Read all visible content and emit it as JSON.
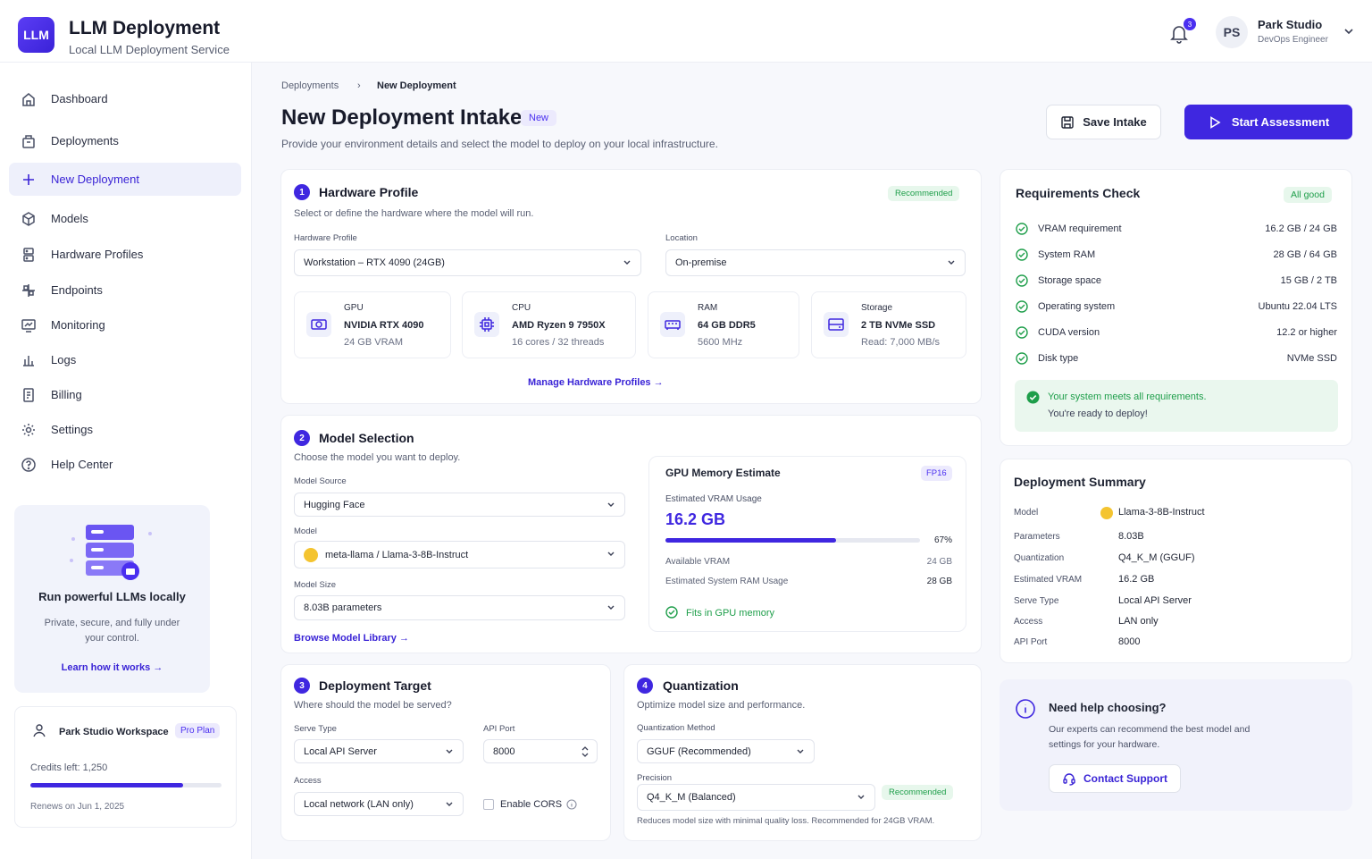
{
  "header": {
    "logo_text": "LLM",
    "title": "LLM Deployment",
    "subtitle": "Local LLM Deployment Service",
    "notification_count": "3",
    "user": {
      "initials": "PS",
      "name": "Park Studio",
      "role": "DevOps Engineer"
    }
  },
  "sidebar": {
    "items": [
      {
        "label": "Dashboard",
        "icon": "home-icon"
      },
      {
        "label": "Deployments",
        "icon": "box-icon"
      },
      {
        "label": "New Deployment",
        "icon": "plus-icon",
        "active": true
      },
      {
        "label": "Models",
        "icon": "cube-icon"
      },
      {
        "label": "Hardware Profiles",
        "icon": "server-icon"
      },
      {
        "label": "Endpoints",
        "icon": "endpoints-icon"
      },
      {
        "label": "Monitoring",
        "icon": "monitor-icon"
      },
      {
        "label": "Logs",
        "icon": "logs-icon"
      },
      {
        "label": "Billing",
        "icon": "billing-icon"
      },
      {
        "label": "Settings",
        "icon": "gear-icon"
      },
      {
        "label": "Help Center",
        "icon": "help-icon"
      }
    ],
    "promo": {
      "title": "Run powerful LLMs locally",
      "text": "Private, secure, and fully under your control.",
      "link": "Learn how it works"
    },
    "workspace": {
      "name": "Park Studio Workspace",
      "plan": "Pro Plan",
      "credits": "Credits left: 1,250",
      "credits_fraction": 0.8,
      "renews": "Renews on Jun 1, 2025"
    }
  },
  "breadcrumb": {
    "parent": "Deployments",
    "current": "New Deployment"
  },
  "page": {
    "title": "New Deployment Intake",
    "badge": "New",
    "description": "Provide your environment details and select the model to deploy on your local infrastructure.",
    "save_label": "Save Intake",
    "start_label": "Start Assessment"
  },
  "hardware": {
    "step": "1",
    "title": "Hardware Profile",
    "subtitle": "Select or define the hardware where the model will run.",
    "badge": "Recommended",
    "profile_label": "Hardware Profile",
    "profile_value": "Workstation – RTX 4090 (24GB)",
    "location_label": "Location",
    "location_value": "On-premise",
    "tiles": [
      {
        "label": "GPU",
        "value": "NVIDIA RTX 4090",
        "sub": "24 GB VRAM",
        "icon": "gpu-icon"
      },
      {
        "label": "CPU",
        "value": "AMD Ryzen 9 7950X",
        "sub": "16 cores / 32 threads",
        "icon": "cpu-icon"
      },
      {
        "label": "RAM",
        "value": "64 GB DDR5",
        "sub": "5600 MHz",
        "icon": "ram-icon"
      },
      {
        "label": "Storage",
        "value": "2 TB NVMe SSD",
        "sub": "Read: 7,000 MB/s",
        "icon": "storage-icon"
      }
    ],
    "manage_link": "Manage Hardware Profiles"
  },
  "model": {
    "step": "2",
    "title": "Model Selection",
    "subtitle": "Choose the model you want to deploy.",
    "source_label": "Model Source",
    "source_value": "Hugging Face",
    "model_label": "Model",
    "model_value": "meta-llama / Llama-3-8B-Instruct",
    "size_label": "Model Size",
    "size_value": "8.03B parameters",
    "browse_link": "Browse Model Library"
  },
  "gpu_memory": {
    "title": "GPU Memory Estimate",
    "badge": "FP16",
    "usage_label": "Estimated VRAM Usage",
    "usage_value": "16.2 GB",
    "percent_label": "67%",
    "percent": 0.67,
    "available_label": "Available VRAM",
    "available_value": "24 GB",
    "ram_label": "Estimated System RAM Usage",
    "ram_value": "28 GB",
    "fits": "Fits in GPU memory"
  },
  "target": {
    "step": "3",
    "title": "Deployment Target",
    "subtitle": "Where should the model be served?",
    "serve_label": "Serve Type",
    "serve_value": "Local API Server",
    "port_label": "API Port",
    "port_value": "8000",
    "access_label": "Access",
    "access_value": "Local network (LAN only)",
    "cors_label": "Enable CORS"
  },
  "quant": {
    "step": "4",
    "title": "Quantization",
    "subtitle": "Optimize model size and performance.",
    "method_label": "Quantization Method",
    "method_value": "GGUF (Recommended)",
    "precision_label": "Precision",
    "precision_value": "Q4_K_M (Balanced)",
    "badge": "Recommended",
    "note": "Reduces model size with minimal quality loss. Recommended for 24GB VRAM."
  },
  "requirements": {
    "title": "Requirements Check",
    "badge": "All good",
    "rows": [
      {
        "name": "VRAM requirement",
        "value": "16.2 GB / 24 GB"
      },
      {
        "name": "System RAM",
        "value": "28 GB / 64 GB"
      },
      {
        "name": "Storage space",
        "value": "15 GB / 2 TB"
      },
      {
        "name": "Operating system",
        "value": "Ubuntu 22.04 LTS"
      },
      {
        "name": "CUDA version",
        "value": "12.2 or higher"
      },
      {
        "name": "Disk type",
        "value": "NVMe SSD"
      }
    ],
    "ok_title": "Your system meets all requirements.",
    "ok_sub": "You're ready to deploy!"
  },
  "summary": {
    "title": "Deployment Summary",
    "rows": [
      {
        "key": "Model",
        "value": "Llama-3-8B-Instruct"
      },
      {
        "key": "Parameters",
        "value": "8.03B"
      },
      {
        "key": "Quantization",
        "value": "Q4_K_M (GGUF)"
      },
      {
        "key": "Estimated VRAM",
        "value": "16.2 GB"
      },
      {
        "key": "Serve Type",
        "value": "Local API Server"
      },
      {
        "key": "Access",
        "value": "LAN only"
      },
      {
        "key": "API Port",
        "value": "8000"
      }
    ]
  },
  "help": {
    "title": "Need help choosing?",
    "text": "Our experts can recommend the best model and settings for your hardware.",
    "button": "Contact Support"
  },
  "colors": {
    "accent": "#3f27e0",
    "success": "#1e9e4a",
    "bg": "#f7f8fc"
  }
}
